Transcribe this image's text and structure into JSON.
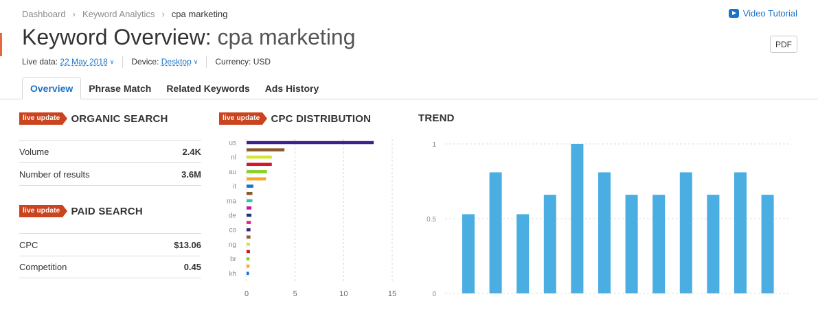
{
  "breadcrumb": {
    "items": [
      "Dashboard",
      "Keyword Analytics",
      "cpa marketing"
    ]
  },
  "header": {
    "video_tutorial": "Video Tutorial",
    "title_prefix": "Keyword Overview:",
    "title_keyword": "cpa marketing",
    "pdf_label": "PDF"
  },
  "meta": {
    "live_data_label": "Live data:",
    "live_data_value": "22 May 2018",
    "device_label": "Device:",
    "device_value": "Desktop",
    "currency": "Currency: USD"
  },
  "tabs": [
    {
      "label": "Overview",
      "active": true
    },
    {
      "label": "Phrase Match",
      "active": false
    },
    {
      "label": "Related Keywords",
      "active": false
    },
    {
      "label": "Ads History",
      "active": false
    }
  ],
  "badge": "live update",
  "organic": {
    "title": "ORGANIC SEARCH",
    "rows": [
      {
        "label": "Volume",
        "value": "2.4K"
      },
      {
        "label": "Number of results",
        "value": "3.6M"
      }
    ]
  },
  "paid": {
    "title": "PAID SEARCH",
    "rows": [
      {
        "label": "CPC",
        "value": "$13.06"
      },
      {
        "label": "Competition",
        "value": "0.45"
      }
    ]
  },
  "cpc_title": "CPC DISTRIBUTION",
  "trend_title": "TREND",
  "chart_data": [
    {
      "type": "bar",
      "orientation": "horizontal",
      "title": "CPC DISTRIBUTION",
      "categories": [
        "us",
        "",
        "nl",
        "",
        "au",
        "",
        "it",
        "",
        "ma",
        "",
        "de",
        "",
        "co",
        "",
        "ng",
        "",
        "br",
        "",
        "kh"
      ],
      "values": [
        13.1,
        3.9,
        2.6,
        2.6,
        2.1,
        2.0,
        0.7,
        0.6,
        0.6,
        0.5,
        0.5,
        0.45,
        0.4,
        0.4,
        0.35,
        0.35,
        0.3,
        0.3,
        0.25
      ],
      "colors": [
        "#3e1f8c",
        "#8b5a2b",
        "#d3e637",
        "#d0182f",
        "#7ed321",
        "#f5a623",
        "#1a73c7",
        "#8b5a2b",
        "#26c6b0",
        "#c2189b",
        "#163b6b",
        "#e61e7d",
        "#3e1f8c",
        "#8b5a2b",
        "#d3e637",
        "#d0182f",
        "#7ed321",
        "#f5a623",
        "#1a73c7"
      ],
      "xticks": [
        0,
        5,
        10,
        15
      ],
      "xlim": [
        0,
        15
      ],
      "grid": "vertical dashed"
    },
    {
      "type": "bar",
      "title": "TREND",
      "values": [
        0.53,
        0.81,
        0.53,
        0.66,
        1.0,
        0.81,
        0.66,
        0.66,
        0.81,
        0.66,
        0.81,
        0.66
      ],
      "yticks": [
        "1",
        "0.5",
        "0"
      ],
      "ylim": [
        0,
        1
      ],
      "color": "#4aaee3",
      "grid": "horizontal dashed"
    }
  ]
}
